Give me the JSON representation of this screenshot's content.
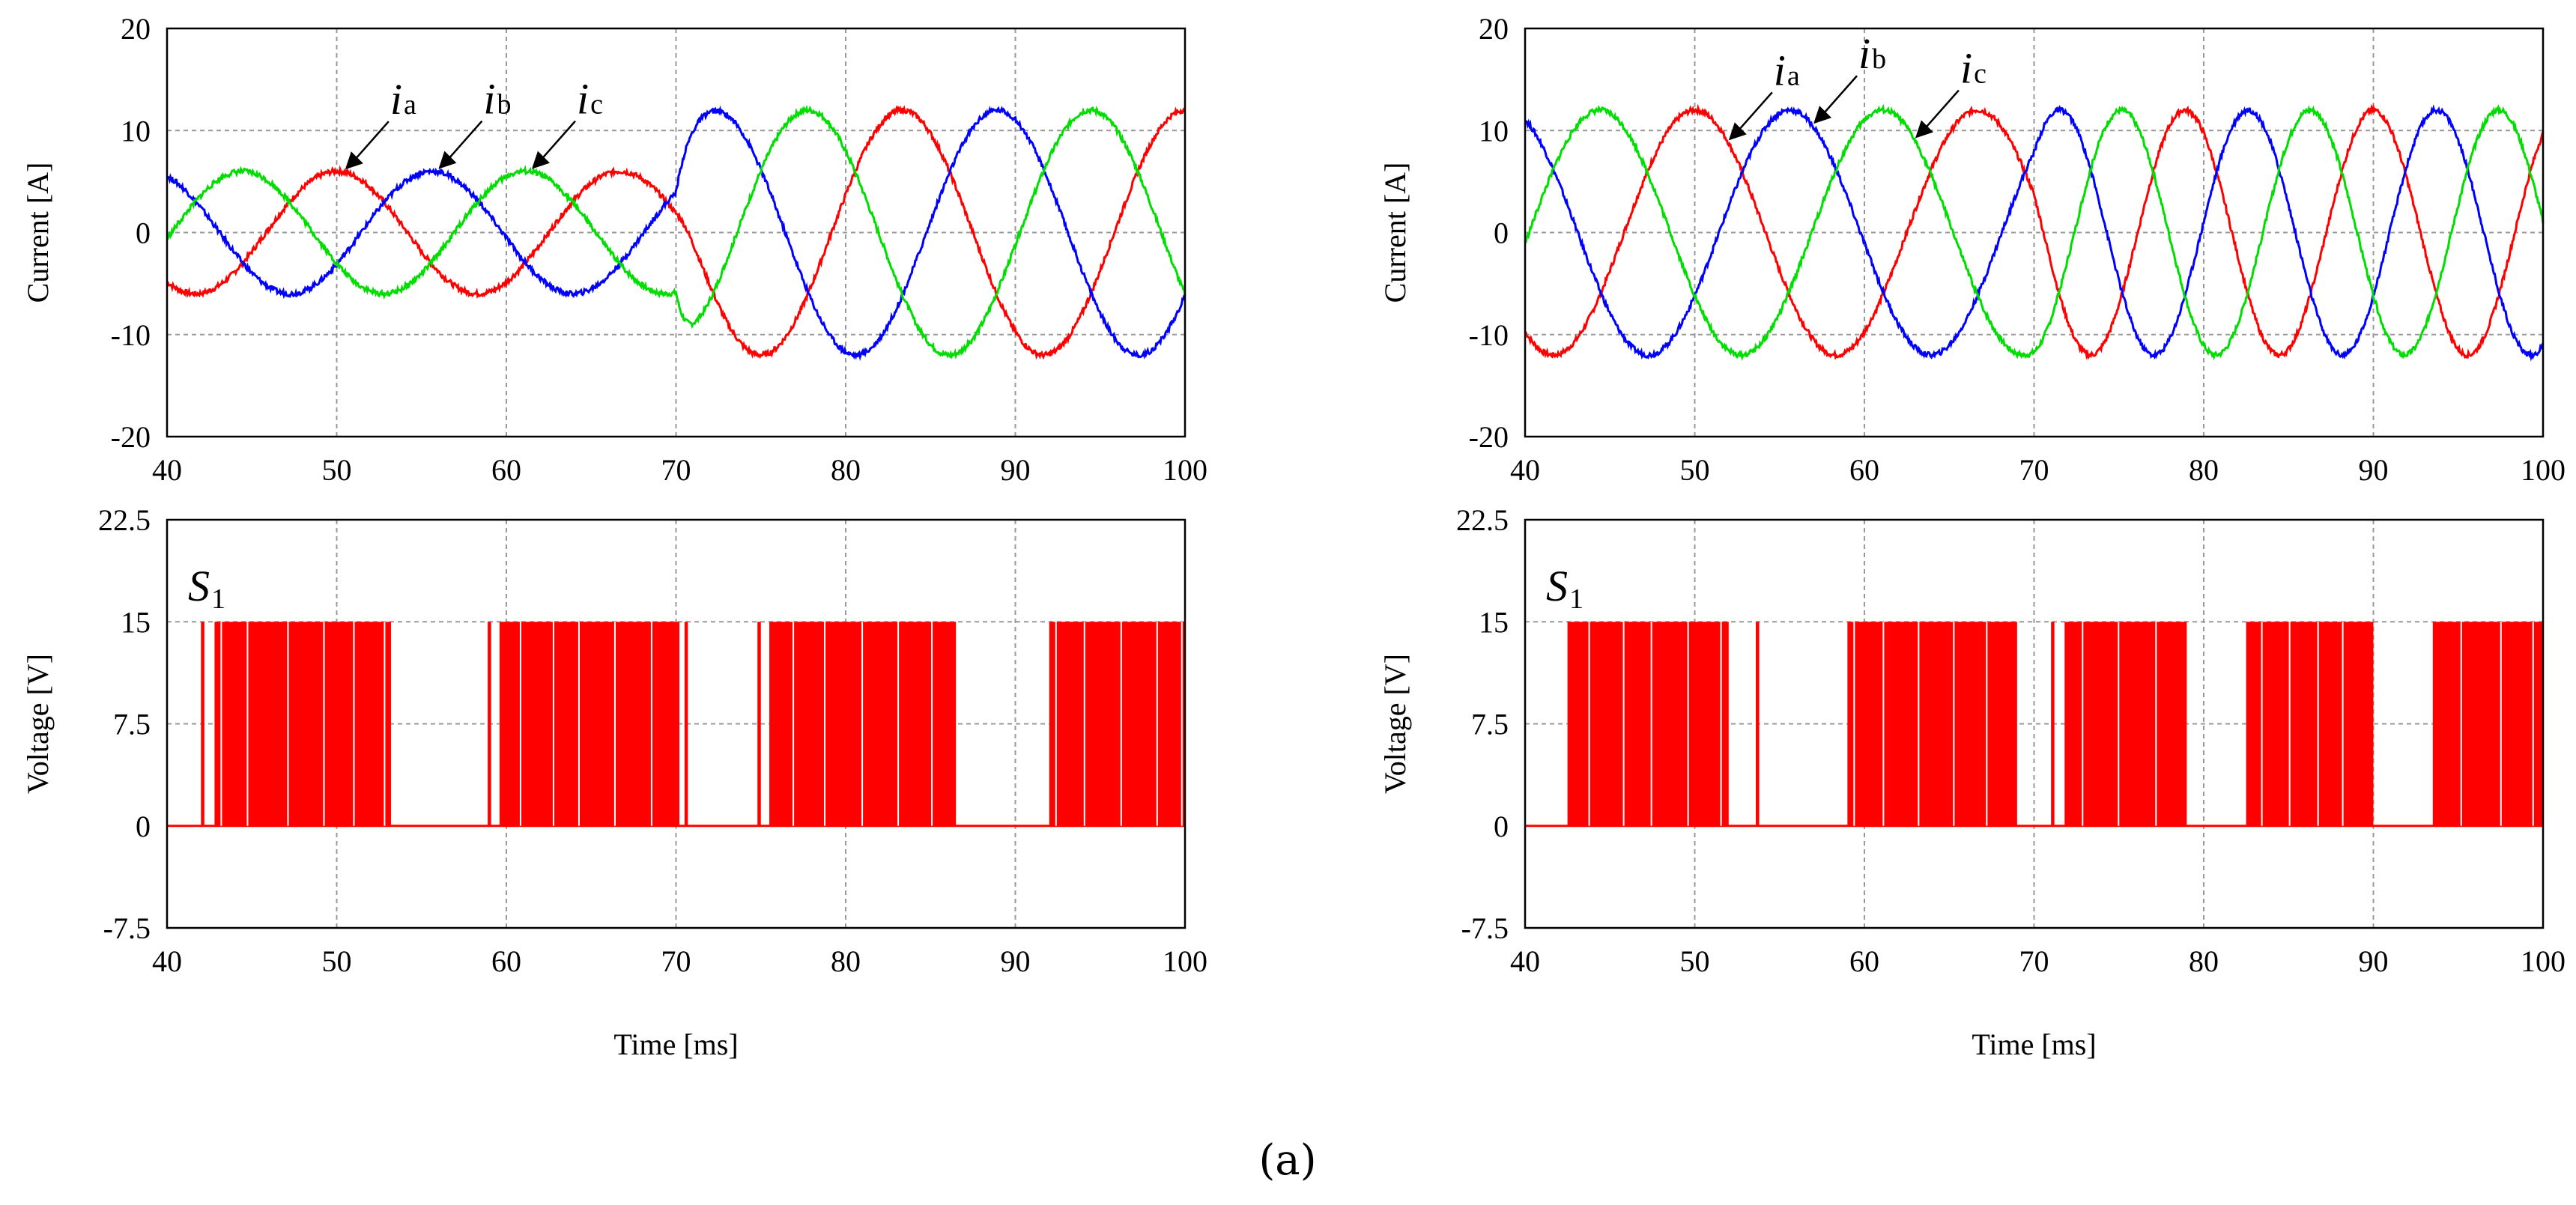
{
  "caption": "(a)",
  "colors": {
    "ia": "#ff0000",
    "ib": "#0000ff",
    "ic": "#00dd00",
    "switch": "#ff0000",
    "grid": "#999999",
    "frame": "#000000"
  },
  "chart_data": [
    {
      "id": "left",
      "type": "line",
      "title": "",
      "xlabel": "",
      "ylabel": "Current [A]",
      "xlim": [
        40,
        100
      ],
      "ylim": [
        -20,
        20
      ],
      "xticks": [
        "40",
        "50",
        "60",
        "70",
        "80",
        "90",
        "100"
      ],
      "yticks": [
        "20",
        "10",
        "0",
        "-10",
        "-20"
      ],
      "grid": true,
      "frequency_hz": [
        60,
        60
      ],
      "amplitude_a": [
        6,
        12
      ],
      "step_time_ms": 70,
      "phase_peak_ms": {
        "ia": 50,
        "ib": 55.6,
        "ic": 61.1
      },
      "series": [
        {
          "name": "ia",
          "label_main": "i",
          "label_sub": "a",
          "color": "#ff0000"
        },
        {
          "name": "ib",
          "label_main": "i",
          "label_sub": "b",
          "color": "#0000ff"
        },
        {
          "name": "ic",
          "label_main": "i",
          "label_sub": "c",
          "color": "#00dd00"
        }
      ],
      "annotation_peaks_ms": {
        "ia": 50.5,
        "ib": 56,
        "ic": 61.5
      }
    },
    {
      "id": "left-switch",
      "type": "line",
      "title": "",
      "label_main": "S",
      "label_sub": "1",
      "xlabel": "Time [ms]",
      "ylabel": "Voltage [V]",
      "xlim": [
        40,
        100
      ],
      "ylim": [
        -7.5,
        22.5
      ],
      "xticks": [
        "40",
        "50",
        "60",
        "70",
        "80",
        "90",
        "100"
      ],
      "yticks": [
        "22.5",
        "15",
        "7.5",
        "0",
        "-7.5"
      ],
      "grid": true,
      "high_level_v": 15,
      "low_level_v": 0,
      "switching_bursts_ms": [
        [
          42,
          42.2
        ],
        [
          42.8,
          53.2
        ],
        [
          58.9,
          59.1
        ],
        [
          59.6,
          70.2
        ],
        [
          70.5,
          70.7
        ],
        [
          74.8,
          75.0
        ],
        [
          75.5,
          86.5
        ],
        [
          92.0,
          100
        ]
      ]
    },
    {
      "id": "right",
      "type": "line",
      "title": "",
      "xlabel": "",
      "ylabel": "Current [A]",
      "xlim": [
        40,
        100
      ],
      "ylim": [
        -20,
        20
      ],
      "xticks": [
        "40",
        "50",
        "60",
        "70",
        "80",
        "90",
        "100"
      ],
      "yticks": [
        "20",
        "10",
        "0",
        "-10",
        "-20"
      ],
      "grid": true,
      "frequency_hz": [
        60,
        90
      ],
      "amplitude_a": [
        12,
        12
      ],
      "step_time_ms": 70,
      "phase_peak_ms": {
        "ia": 50,
        "ib": 55.6,
        "ic": 44.4
      },
      "series": [
        {
          "name": "ia",
          "label_main": "i",
          "label_sub": "a",
          "color": "#ff0000"
        },
        {
          "name": "ib",
          "label_main": "i",
          "label_sub": "b",
          "color": "#0000ff"
        },
        {
          "name": "ic",
          "label_main": "i",
          "label_sub": "c",
          "color": "#00dd00"
        }
      ],
      "annotation_peaks_ms": {
        "ia": 52,
        "ib": 57,
        "ic": 63
      }
    },
    {
      "id": "right-switch",
      "type": "line",
      "title": "",
      "label_main": "S",
      "label_sub": "1",
      "xlabel": "Time [ms]",
      "ylabel": "Voltage [V]",
      "xlim": [
        40,
        100
      ],
      "ylim": [
        -7.5,
        22.5
      ],
      "xticks": [
        "40",
        "50",
        "60",
        "70",
        "80",
        "90",
        "100"
      ],
      "yticks": [
        "22.5",
        "15",
        "7.5",
        "0",
        "-7.5"
      ],
      "grid": true,
      "high_level_v": 15,
      "low_level_v": 0,
      "switching_bursts_ms": [
        [
          42.5,
          52.0
        ],
        [
          53.6,
          53.8
        ],
        [
          59.0,
          69.0
        ],
        [
          71.0,
          71.2
        ],
        [
          71.8,
          79.0
        ],
        [
          82.5,
          90.0
        ],
        [
          93.5,
          100
        ]
      ]
    }
  ]
}
